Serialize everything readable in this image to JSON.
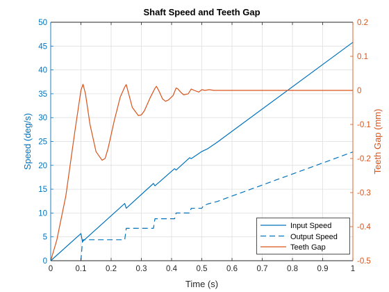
{
  "chart_data": {
    "type": "line",
    "title": "Shaft Speed and Teeth Gap",
    "xlabel": "Time (s)",
    "ylabel_left": "Speed (deg/s)",
    "ylabel_right": "Teeth Gap (mm)",
    "xlim": [
      0,
      1
    ],
    "ylim_left": [
      0,
      50
    ],
    "ylim_right": [
      -0.5,
      0.2
    ],
    "xticks": [
      "0",
      "0.1",
      "0.2",
      "0.3",
      "0.4",
      "0.5",
      "0.6",
      "0.7",
      "0.8",
      "0.9",
      "1"
    ],
    "yticks_left": [
      "0",
      "5",
      "10",
      "15",
      "20",
      "25",
      "30",
      "35",
      "40",
      "45",
      "50"
    ],
    "yticks_right": [
      "-0.5",
      "-0.4",
      "-0.3",
      "-0.2",
      "-0.1",
      "0",
      "0.1",
      "0.2"
    ],
    "grid": true,
    "legend_placement": "bottom-right",
    "colors": {
      "blue": "#0072bd",
      "orange": "#d95319"
    },
    "series": [
      {
        "name": "Input Speed",
        "axis": "left",
        "style": "solid",
        "color": "#0072bd",
        "x": [
          0,
          0.1,
          0.105,
          0.245,
          0.25,
          0.34,
          0.345,
          0.41,
          0.415,
          0.46,
          0.465,
          0.5,
          0.52,
          0.55,
          1.0
        ],
        "y": [
          0,
          5.7,
          4.0,
          12.0,
          11.0,
          16.2,
          15.7,
          19.3,
          19.0,
          21.6,
          21.4,
          22.9,
          23.5,
          24.8,
          45.8
        ]
      },
      {
        "name": "Output Speed",
        "axis": "left",
        "style": "dashed",
        "color": "#0072bd",
        "x": [
          0.1,
          0.105,
          0.107,
          0.245,
          0.25,
          0.34,
          0.345,
          0.41,
          0.415,
          0.46,
          0.465,
          0.5,
          0.505,
          0.52,
          0.55,
          1.0
        ],
        "y": [
          0,
          4.0,
          4.4,
          4.4,
          6.8,
          6.8,
          8.8,
          8.8,
          10.0,
          10.0,
          11.0,
          11.0,
          11.5,
          11.9,
          12.4,
          22.8
        ]
      },
      {
        "name": "Teeth Gap",
        "axis": "right",
        "style": "solid",
        "color": "#d95319",
        "x": [
          0,
          0.02,
          0.05,
          0.08,
          0.1,
          0.107,
          0.115,
          0.13,
          0.15,
          0.17,
          0.18,
          0.19,
          0.21,
          0.23,
          0.245,
          0.25,
          0.255,
          0.27,
          0.29,
          0.3,
          0.31,
          0.33,
          0.345,
          0.35,
          0.36,
          0.37,
          0.38,
          0.39,
          0.405,
          0.415,
          0.42,
          0.43,
          0.44,
          0.455,
          0.465,
          0.475,
          0.49,
          0.5,
          0.51,
          0.525,
          0.54,
          0.55,
          0.6,
          1.0
        ],
        "y": [
          -0.5,
          -0.44,
          -0.31,
          -0.12,
          0.0,
          0.018,
          -0.01,
          -0.1,
          -0.18,
          -0.205,
          -0.2,
          -0.17,
          -0.09,
          -0.02,
          0.01,
          0.017,
          0.0,
          -0.05,
          -0.074,
          -0.072,
          -0.06,
          -0.02,
          0.006,
          0.012,
          -0.005,
          -0.025,
          -0.032,
          -0.028,
          -0.015,
          0.007,
          0.005,
          -0.005,
          -0.013,
          -0.01,
          0.004,
          0.0,
          -0.005,
          0.002,
          0.0,
          0.002,
          0.0,
          0.0,
          0.0,
          0.0
        ]
      }
    ]
  }
}
